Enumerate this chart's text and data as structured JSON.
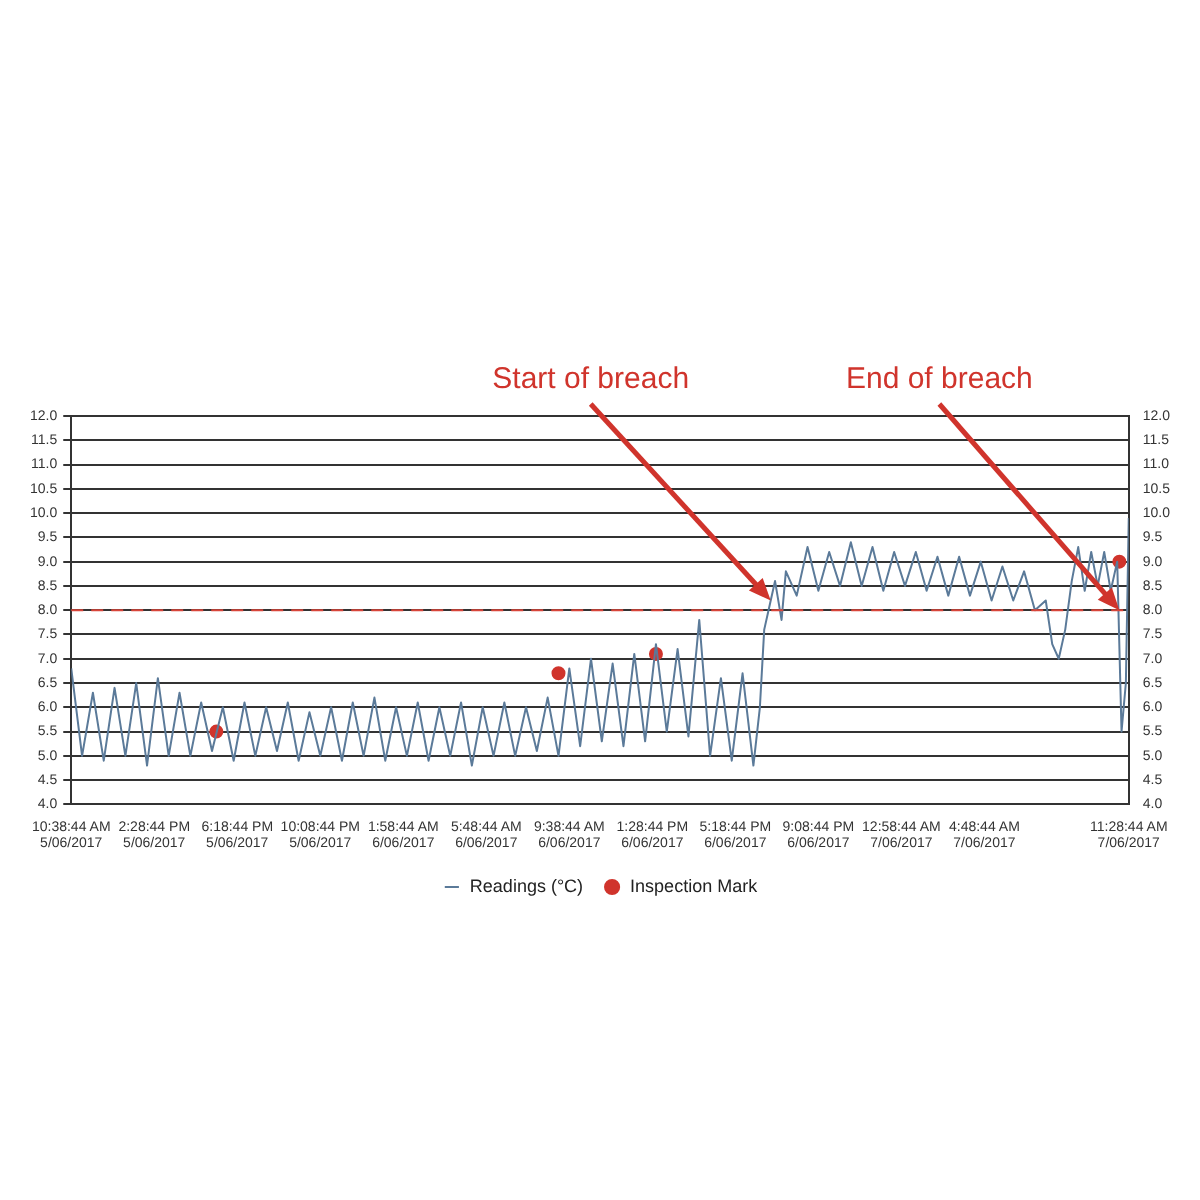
{
  "chart_data": {
    "type": "line",
    "annotations": [
      {
        "text": "Start of breach",
        "x": "2017-06-06T18:56",
        "y": 8.2
      },
      {
        "text": "End of breach",
        "x": "2017-06-07T11:02",
        "y": 8.0
      }
    ],
    "xlim": [
      "2017-06-05T10:38",
      "2017-06-07T11:28"
    ],
    "xticks": [
      {
        "value": "2017-06-05T10:38",
        "label": "10:38:44 AM\n5/06/2017"
      },
      {
        "value": "2017-06-05T14:28",
        "label": "2:28:44 PM\n5/06/2017"
      },
      {
        "value": "2017-06-05T18:18",
        "label": "6:18:44 PM\n5/06/2017"
      },
      {
        "value": "2017-06-05T22:08",
        "label": "10:08:44 PM\n5/06/2017"
      },
      {
        "value": "2017-06-06T01:58",
        "label": "1:58:44 AM\n6/06/2017"
      },
      {
        "value": "2017-06-06T05:48",
        "label": "5:48:44 AM\n6/06/2017"
      },
      {
        "value": "2017-06-06T09:38",
        "label": "9:38:44 AM\n6/06/2017"
      },
      {
        "value": "2017-06-06T13:28",
        "label": "1:28:44 PM\n6/06/2017"
      },
      {
        "value": "2017-06-06T17:18",
        "label": "5:18:44 PM\n6/06/2017"
      },
      {
        "value": "2017-06-06T21:08",
        "label": "9:08:44 PM\n6/06/2017"
      },
      {
        "value": "2017-06-07T00:58",
        "label": "12:58:44 AM\n7/06/2017"
      },
      {
        "value": "2017-06-07T04:48",
        "label": "4:48:44 AM\n7/06/2017"
      },
      {
        "value": "2017-06-07T11:28",
        "label": "11:28:44 AM\n7/06/2017"
      }
    ],
    "ylim": [
      4,
      12
    ],
    "yticks": [
      {
        "value": 4,
        "label": "4.0"
      },
      {
        "value": 4.5,
        "label": "4.5"
      },
      {
        "value": 5,
        "label": "5.0"
      },
      {
        "value": 5.5,
        "label": "5.5"
      },
      {
        "value": 6,
        "label": "6.0"
      },
      {
        "value": 6.5,
        "label": "6.5"
      },
      {
        "value": 7,
        "label": "7.0"
      },
      {
        "value": 7.5,
        "label": "7.5"
      },
      {
        "value": 8,
        "label": "8.0"
      },
      {
        "value": 8.5,
        "label": "8.5"
      },
      {
        "value": 9,
        "label": "9.0"
      },
      {
        "value": 9.5,
        "label": "9.5"
      },
      {
        "value": 10,
        "label": "10.0"
      },
      {
        "value": 10.5,
        "label": "10.5"
      },
      {
        "value": 11,
        "label": "11.0"
      },
      {
        "value": 11.5,
        "label": "11.5"
      },
      {
        "value": 12,
        "label": "12.0"
      }
    ],
    "y2lim": [
      4,
      12
    ],
    "y2ticks": [
      {
        "value": 4,
        "label": "4.0"
      },
      {
        "value": 4.5,
        "label": "4.5"
      },
      {
        "value": 5,
        "label": "5.0"
      },
      {
        "value": 5.5,
        "label": "5.5"
      },
      {
        "value": 6,
        "label": "6.0"
      },
      {
        "value": 6.5,
        "label": "6.5"
      },
      {
        "value": 7,
        "label": "7.0"
      },
      {
        "value": 7.5,
        "label": "7.5"
      },
      {
        "value": 8,
        "label": "8.0"
      },
      {
        "value": 8.5,
        "label": "8.5"
      },
      {
        "value": 9,
        "label": "9.0"
      },
      {
        "value": 9.5,
        "label": "9.5"
      },
      {
        "value": 10,
        "label": "10.0"
      },
      {
        "value": 10.5,
        "label": "10.5"
      },
      {
        "value": 11,
        "label": "11.0"
      },
      {
        "value": 11.5,
        "label": "11.5"
      },
      {
        "value": 12,
        "label": "12.0"
      }
    ],
    "grid": "y",
    "legend": "bottom",
    "ref_lines": [
      {
        "axis": "y",
        "value": 8,
        "color": "#d9453a",
        "line_style": "dashed"
      }
    ],
    "series": [
      {
        "name": "Readings (°C)",
        "color": "#5b7a99",
        "marker": "none",
        "x": [
          "2017-06-05T10:38",
          "2017-06-05T11:08",
          "2017-06-05T11:38",
          "2017-06-05T12:08",
          "2017-06-05T12:38",
          "2017-06-05T13:08",
          "2017-06-05T13:38",
          "2017-06-05T14:08",
          "2017-06-05T14:38",
          "2017-06-05T15:08",
          "2017-06-05T15:38",
          "2017-06-05T16:08",
          "2017-06-05T16:38",
          "2017-06-05T17:08",
          "2017-06-05T17:38",
          "2017-06-05T18:08",
          "2017-06-05T18:38",
          "2017-06-05T19:08",
          "2017-06-05T19:38",
          "2017-06-05T20:08",
          "2017-06-05T20:38",
          "2017-06-05T21:08",
          "2017-06-05T21:38",
          "2017-06-05T22:08",
          "2017-06-05T22:38",
          "2017-06-05T23:08",
          "2017-06-05T23:38",
          "2017-06-06T00:08",
          "2017-06-06T00:38",
          "2017-06-06T01:08",
          "2017-06-06T01:38",
          "2017-06-06T02:08",
          "2017-06-06T02:38",
          "2017-06-06T03:08",
          "2017-06-06T03:38",
          "2017-06-06T04:08",
          "2017-06-06T04:38",
          "2017-06-06T05:08",
          "2017-06-06T05:38",
          "2017-06-06T06:08",
          "2017-06-06T06:38",
          "2017-06-06T07:08",
          "2017-06-06T07:38",
          "2017-06-06T08:08",
          "2017-06-06T08:38",
          "2017-06-06T09:08",
          "2017-06-06T09:38",
          "2017-06-06T10:08",
          "2017-06-06T10:38",
          "2017-06-06T11:08",
          "2017-06-06T11:38",
          "2017-06-06T12:08",
          "2017-06-06T12:38",
          "2017-06-06T13:08",
          "2017-06-06T13:38",
          "2017-06-06T14:08",
          "2017-06-06T14:38",
          "2017-06-06T15:08",
          "2017-06-06T15:38",
          "2017-06-06T16:08",
          "2017-06-06T16:38",
          "2017-06-06T17:08",
          "2017-06-06T17:38",
          "2017-06-06T18:08",
          "2017-06-06T18:26",
          "2017-06-06T18:38",
          "2017-06-06T18:50",
          "2017-06-06T19:08",
          "2017-06-06T19:26",
          "2017-06-06T19:38",
          "2017-06-06T20:08",
          "2017-06-06T20:38",
          "2017-06-06T21:08",
          "2017-06-06T21:38",
          "2017-06-06T22:08",
          "2017-06-06T22:38",
          "2017-06-06T23:08",
          "2017-06-06T23:38",
          "2017-06-07T00:08",
          "2017-06-07T00:38",
          "2017-06-07T01:08",
          "2017-06-07T01:38",
          "2017-06-07T02:08",
          "2017-06-07T02:38",
          "2017-06-07T03:08",
          "2017-06-07T03:38",
          "2017-06-07T04:08",
          "2017-06-07T04:38",
          "2017-06-07T05:08",
          "2017-06-07T05:38",
          "2017-06-07T06:08",
          "2017-06-07T06:38",
          "2017-06-07T07:08",
          "2017-06-07T07:38",
          "2017-06-07T07:56",
          "2017-06-07T08:14",
          "2017-06-07T08:32",
          "2017-06-07T08:50",
          "2017-06-07T09:08",
          "2017-06-07T09:26",
          "2017-06-07T09:44",
          "2017-06-07T10:02",
          "2017-06-07T10:20",
          "2017-06-07T10:38",
          "2017-06-07T10:56",
          "2017-06-07T11:08",
          "2017-06-07T11:20",
          "2017-06-07T11:28"
        ],
        "values": [
          6.8,
          5.0,
          6.3,
          4.9,
          6.4,
          5.0,
          6.5,
          4.8,
          6.6,
          5.0,
          6.3,
          5.0,
          6.1,
          5.1,
          6.0,
          4.9,
          6.1,
          5.0,
          6.0,
          5.1,
          6.1,
          4.9,
          5.9,
          5.0,
          6.0,
          4.9,
          6.1,
          5.0,
          6.2,
          4.9,
          6.0,
          5.0,
          6.1,
          4.9,
          6.0,
          5.0,
          6.1,
          4.8,
          6.0,
          5.0,
          6.1,
          5.0,
          6.0,
          5.1,
          6.2,
          5.0,
          6.8,
          5.2,
          7.0,
          5.3,
          6.9,
          5.2,
          7.1,
          5.3,
          7.3,
          5.5,
          7.2,
          5.4,
          7.8,
          5.0,
          6.6,
          4.9,
          6.7,
          4.8,
          6.0,
          7.6,
          8.0,
          8.6,
          7.8,
          8.8,
          8.3,
          9.3,
          8.4,
          9.2,
          8.5,
          9.4,
          8.5,
          9.3,
          8.4,
          9.2,
          8.5,
          9.2,
          8.4,
          9.1,
          8.3,
          9.1,
          8.3,
          9.0,
          8.2,
          8.9,
          8.2,
          8.8,
          8.0,
          8.2,
          7.3,
          7.0,
          7.6,
          8.6,
          9.3,
          8.4,
          9.2,
          8.5,
          9.2,
          8.4,
          9.0,
          5.5,
          6.5,
          9.9
        ]
      },
      {
        "name": "Inspection Mark",
        "type": "scatter",
        "color": "#d0342c",
        "marker": "circle",
        "x": [
          "2017-06-05T17:20",
          "2017-06-06T09:08",
          "2017-06-06T13:38",
          "2017-06-07T11:02"
        ],
        "values": [
          5.5,
          6.7,
          7.1,
          9.0
        ]
      }
    ]
  }
}
